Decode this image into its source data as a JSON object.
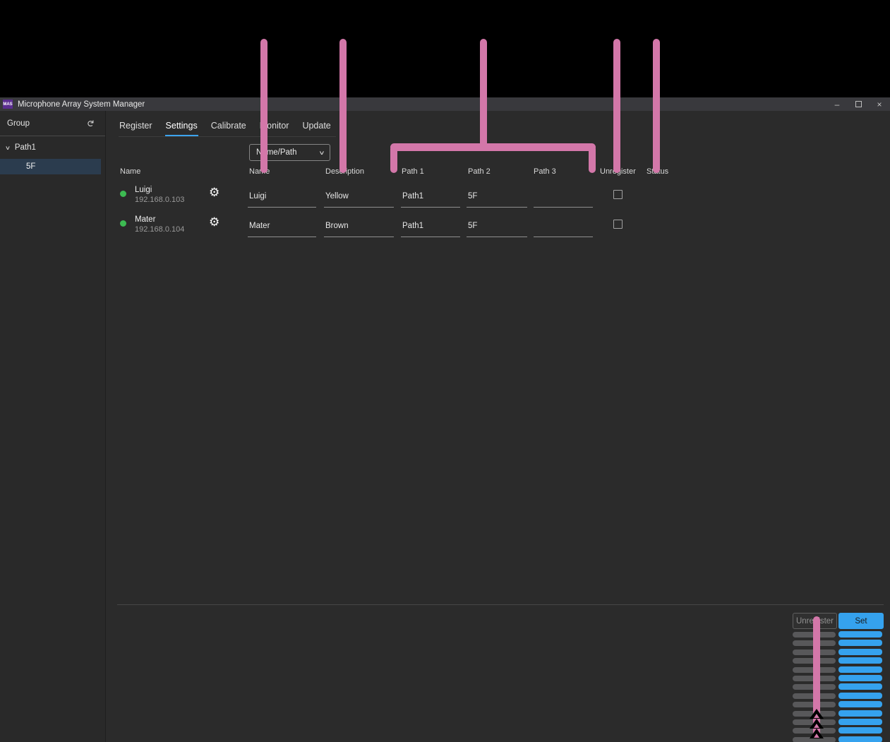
{
  "window": {
    "title": "Microphone Array System Manager",
    "icon_text": "MAS",
    "minimize_glyph": "–",
    "close_glyph": "×"
  },
  "sidebar": {
    "header": "Group",
    "refresh_glyph": "↻",
    "tree": {
      "chevron_glyph": "∨",
      "group_label": "Path1",
      "items": [
        {
          "label": "5F",
          "selected": true
        }
      ]
    }
  },
  "tabs": [
    {
      "label": "Register",
      "active": false
    },
    {
      "label": "Settings",
      "active": true
    },
    {
      "label": "Calibrate",
      "active": false
    },
    {
      "label": "Monitor",
      "active": false
    },
    {
      "label": "Update",
      "active": false
    }
  ],
  "toolbar": {
    "dropdown_value": "Name/Path",
    "dropdown_chevron": "∨"
  },
  "device_table": {
    "list_header": "Name",
    "columns": [
      "Name",
      "Description",
      "Path 1",
      "Path 2",
      "Path 3",
      "Unregister",
      "Status"
    ],
    "gear_glyph": "⚙",
    "rows": [
      {
        "device_name": "Luigi",
        "ip": "192.168.0.103",
        "online": true,
        "fields": {
          "name": "Luigi",
          "description": "Yellow",
          "path1": "Path1",
          "path2": "5F",
          "path3": ""
        },
        "unregister_checked": false,
        "status": ""
      },
      {
        "device_name": "Mater",
        "ip": "192.168.0.104",
        "online": true,
        "fields": {
          "name": "Mater",
          "description": "Brown",
          "path1": "Path1",
          "path2": "5F",
          "path3": ""
        },
        "unregister_checked": false,
        "status": ""
      }
    ]
  },
  "footer": {
    "unregister_label": "Unregister",
    "set_label": "Set",
    "meter_segments": 13
  },
  "colors": {
    "accent_blue": "#35a2ee",
    "tab_underline": "#3ca4ee",
    "selection_blue": "#2b3c4e",
    "status_green": "#3dbb52",
    "annotation_pink": "#d377a9",
    "app_icon_purple": "#5b2d91"
  }
}
